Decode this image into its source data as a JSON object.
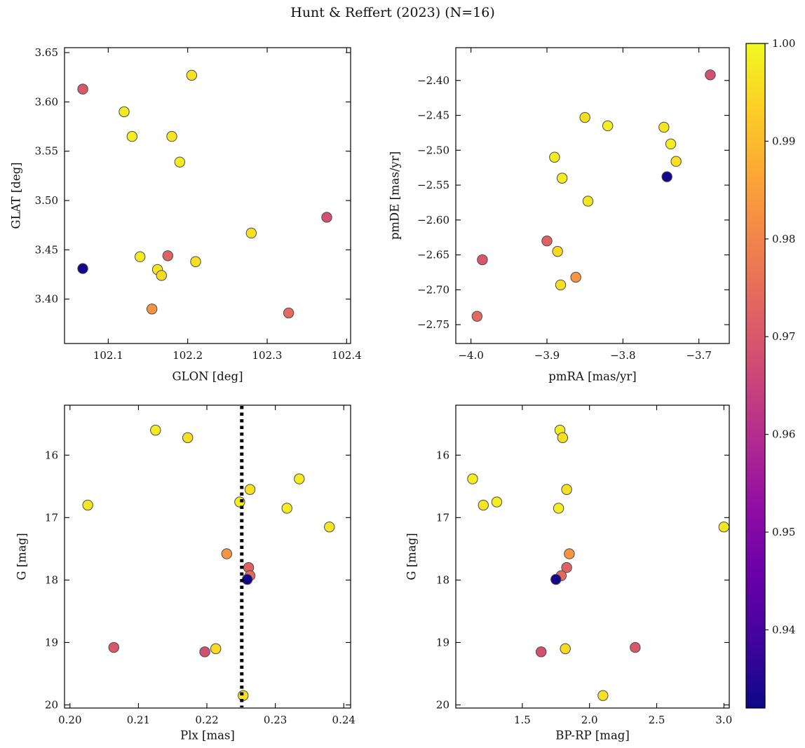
{
  "chart_data": {
    "type": "scatter",
    "title": "Hunt & Reffert (2023) (N=16)",
    "n_stars": 16,
    "colorbar": {
      "vmin": 0.932,
      "vmax": 1.0,
      "ticks": [
        {
          "v": 1.0,
          "label": "1.00"
        },
        {
          "v": 0.99,
          "label": "0.99"
        },
        {
          "v": 0.98,
          "label": "0.98"
        },
        {
          "v": 0.97,
          "label": "0.97"
        },
        {
          "v": 0.96,
          "label": "0.96"
        },
        {
          "v": 0.95,
          "label": "0.95"
        },
        {
          "v": 0.94,
          "label": "0.94"
        }
      ],
      "cmap_name": "plasma",
      "cmap_stops": [
        {
          "t": 0.0,
          "c": "#0d0887"
        },
        {
          "t": 0.1,
          "c": "#41049d"
        },
        {
          "t": 0.2,
          "c": "#6a00a8"
        },
        {
          "t": 0.3,
          "c": "#8f0da4"
        },
        {
          "t": 0.4,
          "c": "#b12a90"
        },
        {
          "t": 0.5,
          "c": "#cc4778"
        },
        {
          "t": 0.6,
          "c": "#e16462"
        },
        {
          "t": 0.7,
          "c": "#f1834c"
        },
        {
          "t": 0.8,
          "c": "#fca636"
        },
        {
          "t": 0.9,
          "c": "#fcce25"
        },
        {
          "t": 1.0,
          "c": "#f0f921"
        }
      ]
    },
    "panels": [
      {
        "key": "glon-glat",
        "xlabel": "GLON [deg]",
        "ylabel": "GLAT [deg]",
        "x_field": "glon",
        "y_field": "glat",
        "xlim": [
          102.045,
          102.405
        ],
        "ylim": [
          3.355,
          3.655
        ],
        "invert_y": false,
        "xticks": [
          {
            "v": 102.1,
            "label": "102.1"
          },
          {
            "v": 102.2,
            "label": "102.2"
          },
          {
            "v": 102.3,
            "label": "102.3"
          },
          {
            "v": 102.4,
            "label": "102.4"
          }
        ],
        "yticks": [
          {
            "v": 3.4,
            "label": "3.40"
          },
          {
            "v": 3.45,
            "label": "3.45"
          },
          {
            "v": 3.5,
            "label": "3.50"
          },
          {
            "v": 3.55,
            "label": "3.55"
          },
          {
            "v": 3.6,
            "label": "3.60"
          },
          {
            "v": 3.65,
            "label": "3.65"
          }
        ],
        "vline": null
      },
      {
        "key": "pmra-pmde",
        "xlabel": "pmRA [mas/yr]",
        "ylabel": "pmDE [mas/yr]",
        "x_field": "pmra",
        "y_field": "pmde",
        "xlim": [
          -4.02,
          -3.66
        ],
        "ylim": [
          -2.777,
          -2.353
        ],
        "invert_y": false,
        "xticks": [
          {
            "v": -4.0,
            "label": "−4.0"
          },
          {
            "v": -3.9,
            "label": "−3.9"
          },
          {
            "v": -3.8,
            "label": "−3.8"
          },
          {
            "v": -3.7,
            "label": "−3.7"
          }
        ],
        "yticks": [
          {
            "v": -2.4,
            "label": "−2.40"
          },
          {
            "v": -2.45,
            "label": "−2.45"
          },
          {
            "v": -2.5,
            "label": "−2.50"
          },
          {
            "v": -2.55,
            "label": "−2.55"
          },
          {
            "v": -2.6,
            "label": "−2.60"
          },
          {
            "v": -2.65,
            "label": "−2.65"
          },
          {
            "v": -2.7,
            "label": "−2.70"
          },
          {
            "v": -2.75,
            "label": "−2.75"
          }
        ],
        "vline": null
      },
      {
        "key": "plx-g",
        "xlabel": "Plx [mas]",
        "ylabel": "G [mag]",
        "x_field": "plx",
        "y_field": "g",
        "xlim": [
          0.1992,
          0.241
        ],
        "ylim": [
          15.2,
          20.05
        ],
        "invert_y": true,
        "xticks": [
          {
            "v": 0.2,
            "label": "0.20"
          },
          {
            "v": 0.21,
            "label": "0.21"
          },
          {
            "v": 0.22,
            "label": "0.22"
          },
          {
            "v": 0.23,
            "label": "0.23"
          },
          {
            "v": 0.24,
            "label": "0.24"
          }
        ],
        "yticks": [
          {
            "v": 16,
            "label": "16"
          },
          {
            "v": 17,
            "label": "17"
          },
          {
            "v": 18,
            "label": "18"
          },
          {
            "v": 19,
            "label": "19"
          },
          {
            "v": 20,
            "label": "20"
          }
        ],
        "vline": 0.2251
      },
      {
        "key": "bprp-g",
        "xlabel": "BP-RP [mag]",
        "ylabel": "G [mag]",
        "x_field": "bprp",
        "y_field": "g",
        "xlim": [
          1.005,
          3.04
        ],
        "ylim": [
          15.2,
          20.05
        ],
        "invert_y": true,
        "xticks": [
          {
            "v": 1.5,
            "label": "1.5"
          },
          {
            "v": 2.0,
            "label": "2.0"
          },
          {
            "v": 2.5,
            "label": "2.5"
          },
          {
            "v": 3.0,
            "label": "3.0"
          }
        ],
        "yticks": [
          {
            "v": 16,
            "label": "16"
          },
          {
            "v": 17,
            "label": "17"
          },
          {
            "v": 18,
            "label": "18"
          },
          {
            "v": 19,
            "label": "19"
          },
          {
            "v": 20,
            "label": "20"
          }
        ],
        "vline": null
      }
    ],
    "stars": [
      {
        "glon": 102.068,
        "glat": 3.613,
        "pmra": -3.985,
        "pmde": -2.657,
        "plx": 0.2064,
        "g": 19.08,
        "bprp": 2.34,
        "prob": 0.97
      },
      {
        "glon": 102.375,
        "glat": 3.483,
        "pmra": -3.685,
        "pmde": -2.392,
        "plx": 0.2197,
        "g": 19.15,
        "bprp": 1.64,
        "prob": 0.968
      },
      {
        "glon": 102.175,
        "glat": 3.444,
        "pmra": -3.9,
        "pmde": -2.63,
        "plx": 0.2261,
        "g": 17.8,
        "bprp": 1.83,
        "prob": 0.972
      },
      {
        "glon": 102.327,
        "glat": 3.386,
        "pmra": -3.992,
        "pmde": -2.738,
        "plx": 0.2263,
        "g": 17.93,
        "bprp": 1.79,
        "prob": 0.974
      },
      {
        "glon": 102.155,
        "glat": 3.39,
        "pmra": -3.862,
        "pmde": -2.682,
        "plx": 0.2229,
        "g": 17.58,
        "bprp": 1.85,
        "prob": 0.983
      },
      {
        "glon": 102.068,
        "glat": 3.431,
        "pmra": -3.742,
        "pmde": -2.538,
        "plx": 0.2259,
        "g": 17.99,
        "bprp": 1.75,
        "prob": 0.933
      },
      {
        "glon": 102.12,
        "glat": 3.59,
        "pmra": -3.89,
        "pmde": -2.51,
        "plx": 0.2125,
        "g": 15.6,
        "bprp": 1.78,
        "prob": 0.998
      },
      {
        "glon": 102.205,
        "glat": 3.627,
        "pmra": -3.85,
        "pmde": -2.453,
        "plx": 0.2172,
        "g": 15.72,
        "bprp": 1.8,
        "prob": 0.996
      },
      {
        "glon": 102.13,
        "glat": 3.565,
        "pmra": -3.82,
        "pmde": -2.465,
        "plx": 0.2335,
        "g": 16.38,
        "bprp": 1.13,
        "prob": 0.998
      },
      {
        "glon": 102.18,
        "glat": 3.565,
        "pmra": -3.746,
        "pmde": -2.467,
        "plx": 0.2026,
        "g": 16.8,
        "bprp": 1.21,
        "prob": 0.997
      },
      {
        "glon": 102.19,
        "glat": 3.539,
        "pmra": -3.737,
        "pmde": -2.491,
        "plx": 0.2317,
        "g": 16.85,
        "bprp": 1.77,
        "prob": 0.998
      },
      {
        "glon": 102.28,
        "glat": 3.467,
        "pmra": -3.73,
        "pmde": -2.516,
        "plx": 0.2263,
        "g": 16.55,
        "bprp": 1.83,
        "prob": 0.996
      },
      {
        "glon": 102.14,
        "glat": 3.443,
        "pmra": -3.88,
        "pmde": -2.54,
        "plx": 0.2248,
        "g": 16.75,
        "bprp": 1.31,
        "prob": 0.998
      },
      {
        "glon": 102.162,
        "glat": 3.43,
        "pmra": -3.846,
        "pmde": -2.573,
        "plx": 0.2379,
        "g": 17.15,
        "bprp": 3.0,
        "prob": 0.997
      },
      {
        "glon": 102.167,
        "glat": 3.424,
        "pmra": -3.886,
        "pmde": -2.645,
        "plx": 0.2213,
        "g": 19.1,
        "bprp": 1.82,
        "prob": 0.995
      },
      {
        "glon": 102.21,
        "glat": 3.438,
        "pmra": -3.882,
        "pmde": -2.693,
        "plx": 0.2253,
        "g": 19.85,
        "bprp": 2.1,
        "prob": 0.996
      }
    ]
  }
}
